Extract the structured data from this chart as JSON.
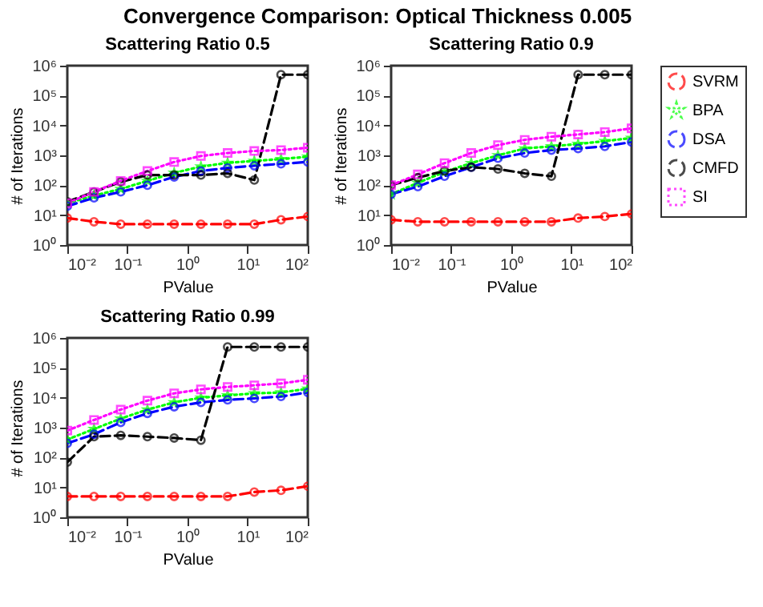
{
  "chart_data": [
    {
      "type": "line",
      "title": "Scattering Ratio 0.5",
      "xlabel": "PValue",
      "ylabel": "# of Iterations",
      "annotations": [
        "Convergence Comparison: Optical Thickness 0.005"
      ],
      "log": "xy",
      "x": [
        0.01,
        0.0278,
        0.0774,
        0.215,
        0.599,
        1.67,
        4.64,
        12.9,
        35.9,
        100
      ],
      "xlim": [
        0.01,
        100
      ],
      "ylim": [
        1,
        1000000
      ],
      "xticks": [
        {
          "value": 0.01,
          "label": "10⁻²"
        },
        {
          "value": 0.1,
          "label": "10⁻¹"
        },
        {
          "value": 1,
          "label": "10⁰"
        },
        {
          "value": 10,
          "label": "10¹"
        },
        {
          "value": 100,
          "label": "10²"
        }
      ],
      "yticks": [
        {
          "value": 1,
          "label": "10⁰"
        },
        {
          "value": 10,
          "label": "10¹"
        },
        {
          "value": 100,
          "label": "10²"
        },
        {
          "value": 1000,
          "label": "10³"
        },
        {
          "value": 10000,
          "label": "10⁴"
        },
        {
          "value": 100000,
          "label": "10⁵"
        },
        {
          "value": 1000000,
          "label": "10⁶"
        }
      ],
      "grid": false,
      "series": [
        {
          "color": "#ff0000",
          "marker": "circle",
          "line_style": "dashed",
          "values": [
            8,
            6,
            5,
            5,
            5,
            5,
            5,
            5,
            7,
            9
          ]
        },
        {
          "color": "#00ff00",
          "marker": "star",
          "line_style": "dotted",
          "values": [
            25,
            45,
            75,
            140,
            260,
            420,
            560,
            650,
            750,
            900
          ]
        },
        {
          "color": "#0000ff",
          "marker": "circle",
          "line_style": "dashed",
          "values": [
            20,
            38,
            60,
            100,
            190,
            300,
            380,
            450,
            520,
            600
          ]
        },
        {
          "color": "#000000",
          "marker": "circle",
          "line_style": "dashed",
          "values": [
            28,
            60,
            130,
            220,
            220,
            220,
            250,
            150,
            500000,
            500000
          ]
        },
        {
          "color": "#ff00ff",
          "marker": "square",
          "line_style": "dotted",
          "values": [
            25,
            60,
            140,
            300,
            600,
            950,
            1200,
            1400,
            1500,
            1800
          ]
        }
      ]
    },
    {
      "type": "line",
      "title": "Scattering Ratio 0.9",
      "xlabel": "PValue",
      "ylabel": "# of Iterations",
      "log": "xy",
      "x": [
        0.01,
        0.0278,
        0.0774,
        0.215,
        0.599,
        1.67,
        4.64,
        12.9,
        35.9,
        100
      ],
      "xlim": [
        0.01,
        100
      ],
      "ylim": [
        1,
        1000000
      ],
      "xticks": [
        {
          "value": 0.01,
          "label": "10⁻²"
        },
        {
          "value": 0.1,
          "label": "10⁻¹"
        },
        {
          "value": 1,
          "label": "10⁰"
        },
        {
          "value": 10,
          "label": "10¹"
        },
        {
          "value": 100,
          "label": "10²"
        }
      ],
      "yticks": [
        {
          "value": 1,
          "label": "10⁰"
        },
        {
          "value": 10,
          "label": "10¹"
        },
        {
          "value": 100,
          "label": "10²"
        },
        {
          "value": 1000,
          "label": "10³"
        },
        {
          "value": 10000,
          "label": "10⁴"
        },
        {
          "value": 100000,
          "label": "10⁵"
        },
        {
          "value": 1000000,
          "label": "10⁶"
        }
      ],
      "grid": false,
      "legend": "right",
      "series": [
        {
          "name": "SVRM",
          "color": "#ff0000",
          "marker": "circle",
          "line_style": "dashed",
          "values": [
            7,
            6,
            6,
            6,
            6,
            6,
            6,
            8,
            9,
            11
          ]
        },
        {
          "name": "BPA",
          "color": "#00ff00",
          "marker": "star",
          "line_style": "dotted",
          "values": [
            50,
            120,
            280,
            550,
            1000,
            1700,
            2000,
            2400,
            3000,
            3800
          ]
        },
        {
          "name": "DSA",
          "color": "#0000ff",
          "marker": "circle",
          "line_style": "dashed",
          "values": [
            50,
            90,
            200,
            400,
            800,
            1200,
            1500,
            1700,
            2000,
            2800
          ]
        },
        {
          "name": "CMFD",
          "color": "#000000",
          "marker": "circle",
          "line_style": "dashed",
          "values": [
            100,
            180,
            300,
            400,
            350,
            250,
            200,
            500000,
            500000,
            500000
          ]
        },
        {
          "name": "SI",
          "color": "#ff00ff",
          "marker": "square",
          "line_style": "dotted",
          "values": [
            100,
            230,
            550,
            1200,
            2200,
            3300,
            4200,
            5000,
            6000,
            8000
          ]
        }
      ]
    },
    {
      "type": "line",
      "title": "Scattering Ratio 0.99",
      "xlabel": "PValue",
      "ylabel": "# of Iterations",
      "log": "xy",
      "x": [
        0.01,
        0.0278,
        0.0774,
        0.215,
        0.599,
        1.67,
        4.64,
        12.9,
        35.9,
        100
      ],
      "xlim": [
        0.01,
        100
      ],
      "ylim": [
        1,
        1000000
      ],
      "xticks": [
        {
          "value": 0.01,
          "label": "10⁻²"
        },
        {
          "value": 0.1,
          "label": "10⁻¹"
        },
        {
          "value": 1,
          "label": "10⁰"
        },
        {
          "value": 10,
          "label": "10¹"
        },
        {
          "value": 100,
          "label": "10²"
        }
      ],
      "yticks": [
        {
          "value": 1,
          "label": "10⁰"
        },
        {
          "value": 10,
          "label": "10¹"
        },
        {
          "value": 100,
          "label": "10²"
        },
        {
          "value": 1000,
          "label": "10³"
        },
        {
          "value": 10000,
          "label": "10⁴"
        },
        {
          "value": 100000,
          "label": "10⁵"
        },
        {
          "value": 1000000,
          "label": "10⁶"
        }
      ],
      "grid": false,
      "series": [
        {
          "color": "#ff0000",
          "marker": "circle",
          "line_style": "dashed",
          "values": [
            5,
            5,
            5,
            5,
            5,
            5,
            5,
            7,
            8,
            11
          ]
        },
        {
          "color": "#00ff00",
          "marker": "star",
          "line_style": "dotted",
          "values": [
            400,
            900,
            2000,
            4000,
            7000,
            10000,
            12000,
            14000,
            15000,
            20000
          ]
        },
        {
          "color": "#0000ff",
          "marker": "circle",
          "line_style": "dashed",
          "values": [
            300,
            600,
            1500,
            3000,
            5000,
            7000,
            8500,
            9500,
            11000,
            15000
          ]
        },
        {
          "color": "#000000",
          "marker": "circle",
          "line_style": "dashed",
          "values": [
            70,
            500,
            550,
            500,
            450,
            380,
            500000,
            500000,
            500000,
            500000
          ]
        },
        {
          "color": "#ff00ff",
          "marker": "square",
          "line_style": "dotted",
          "values": [
            800,
            1800,
            4000,
            8000,
            14000,
            19000,
            23000,
            26000,
            30000,
            40000
          ]
        }
      ]
    }
  ]
}
